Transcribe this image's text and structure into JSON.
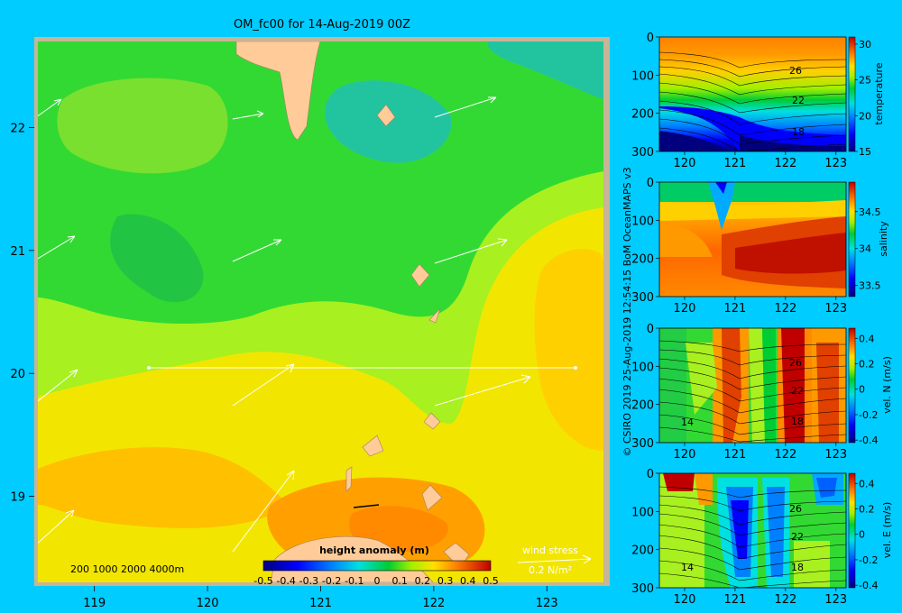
{
  "title": "OM_fc00 for 14-Aug-2019 00Z",
  "credit": "© CSIRO 2019   25-Aug-2019 12:54:15 BoM OceanMAPS v3",
  "colors": {
    "background": "#00ccff",
    "land": "#ffcc99",
    "frame": "#c8b496",
    "arrows": "#ffffff"
  },
  "chart_data": [
    {
      "type": "heatmap",
      "name": "main-map",
      "title": "OM_fc00 for 14-Aug-2019 00Z",
      "xlim": [
        118.5,
        123.5
      ],
      "ylim": [
        18.3,
        22.7
      ],
      "x_ticks": [
        119,
        120,
        121,
        122,
        123
      ],
      "y_ticks": [
        19,
        20,
        21,
        22
      ],
      "colorbar": {
        "label": "height anomaly (m)",
        "range": [
          -0.5,
          0.5
        ],
        "ticks": [
          "-0.5",
          "-0.4",
          "-0.3",
          "-0.2",
          "-0.1",
          "0",
          "0.1",
          "0.2",
          "0.3",
          "0.4",
          "0.5"
        ]
      },
      "depth_legend": "200  1000  2000  4000m",
      "wind_stress": {
        "label": "wind stress",
        "scale": "0.2 N/m²"
      },
      "transect": {
        "lat": 20.0,
        "lon_start": 119.5,
        "lon_end": 123.2
      }
    },
    {
      "type": "heatmap",
      "name": "temperature-section",
      "xlim": [
        119.5,
        123.2
      ],
      "ylim": [
        300,
        0
      ],
      "x_ticks": [
        120,
        121,
        122,
        123
      ],
      "y_ticks": [
        0,
        100,
        200,
        300
      ],
      "colorbar": {
        "label": "temperature",
        "ticks": [
          "15",
          "20",
          "25",
          "30"
        ]
      },
      "contour_labels": [
        "26",
        "22",
        "18"
      ]
    },
    {
      "type": "heatmap",
      "name": "salinity-section",
      "xlim": [
        119.5,
        123.2
      ],
      "ylim": [
        300,
        0
      ],
      "x_ticks": [
        120,
        121,
        122,
        123
      ],
      "y_ticks": [
        0,
        100,
        200,
        300
      ],
      "colorbar": {
        "label": "salinity",
        "ticks": [
          "33.5",
          "34",
          "34.5"
        ]
      }
    },
    {
      "type": "heatmap",
      "name": "velocity-north-section",
      "xlim": [
        119.5,
        123.2
      ],
      "ylim": [
        300,
        0
      ],
      "x_ticks": [
        120,
        121,
        122,
        123
      ],
      "y_ticks": [
        0,
        100,
        200,
        300
      ],
      "colorbar": {
        "label": "vel. N  (m/s)",
        "ticks": [
          "-0.4",
          "-0.2",
          "0",
          "0.2",
          "0.4"
        ]
      },
      "contour_labels": [
        "26",
        "22",
        "18",
        "14"
      ]
    },
    {
      "type": "heatmap",
      "name": "velocity-east-section",
      "xlim": [
        119.5,
        123.2
      ],
      "ylim": [
        300,
        0
      ],
      "x_ticks": [
        120,
        121,
        122,
        123
      ],
      "y_ticks": [
        0,
        100,
        200,
        300
      ],
      "colorbar": {
        "label": "vel. E  (m/s)",
        "ticks": [
          "-0.4",
          "-0.2",
          "0",
          "0.2",
          "0.4"
        ]
      },
      "contour_labels": [
        "26",
        "22",
        "18",
        "14"
      ]
    }
  ]
}
